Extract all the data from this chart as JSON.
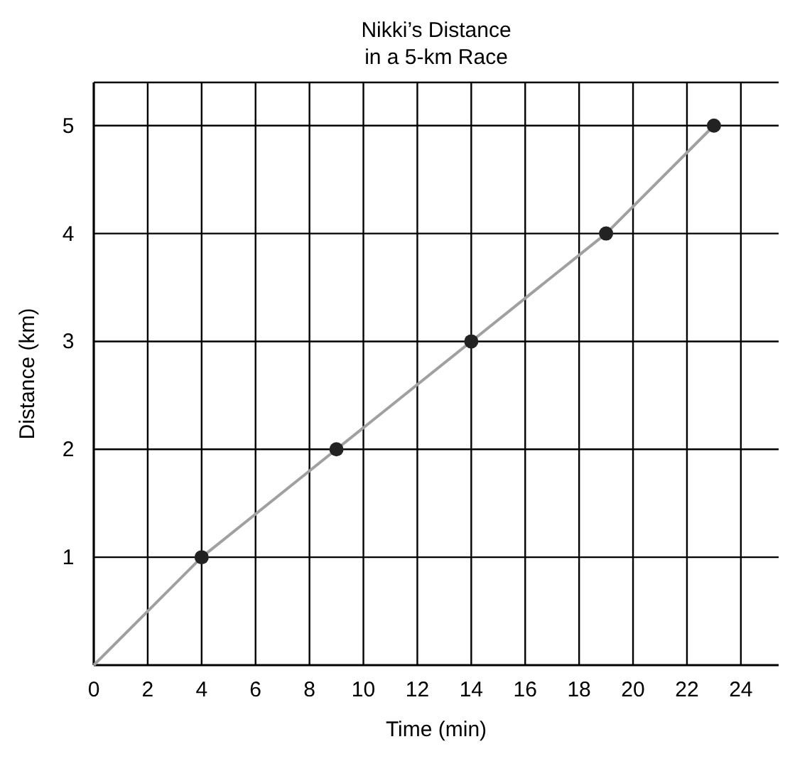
{
  "chart_data": {
    "type": "line",
    "title": "Nikki’s Distance\nin a 5-km Race",
    "xlabel": "Time (min)",
    "ylabel": "Distance (km)",
    "xlim": [
      0,
      25.4
    ],
    "xticks": [
      0,
      2,
      4,
      6,
      8,
      10,
      12,
      14,
      16,
      18,
      20,
      22,
      24
    ],
    "ylim": [
      0,
      5.4
    ],
    "yticks": [
      1,
      2,
      3,
      4,
      5
    ],
    "grid": true,
    "series": [
      {
        "color": "#a0a0a0",
        "x": [
          0,
          4,
          9,
          14,
          19,
          23
        ],
        "values": [
          0,
          1,
          2,
          3,
          4,
          5
        ],
        "marker": "none"
      },
      {
        "type": "scatter",
        "color": "#222222",
        "x": [
          4,
          9,
          14,
          19,
          23
        ],
        "values": [
          1,
          2,
          3,
          4,
          5
        ],
        "marker": "circle"
      }
    ]
  }
}
